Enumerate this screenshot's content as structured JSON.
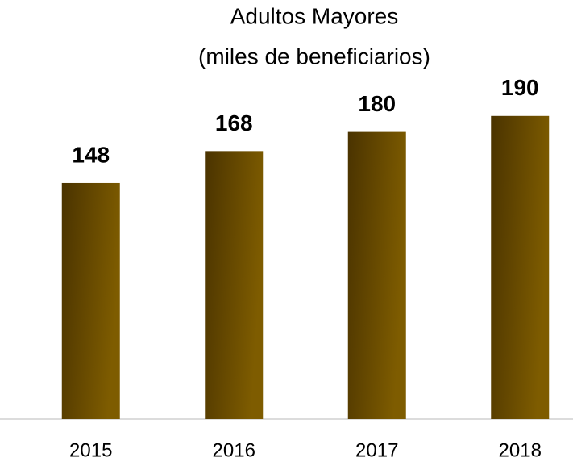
{
  "chart_data": {
    "type": "bar",
    "title": "Adultos Mayores",
    "subtitle": "(miles de beneficiarios)",
    "categories": [
      "2015",
      "2016",
      "2017",
      "2018"
    ],
    "values": [
      148,
      168,
      180,
      190
    ],
    "color": "#7e5c00",
    "ylim": [
      0,
      200
    ]
  }
}
